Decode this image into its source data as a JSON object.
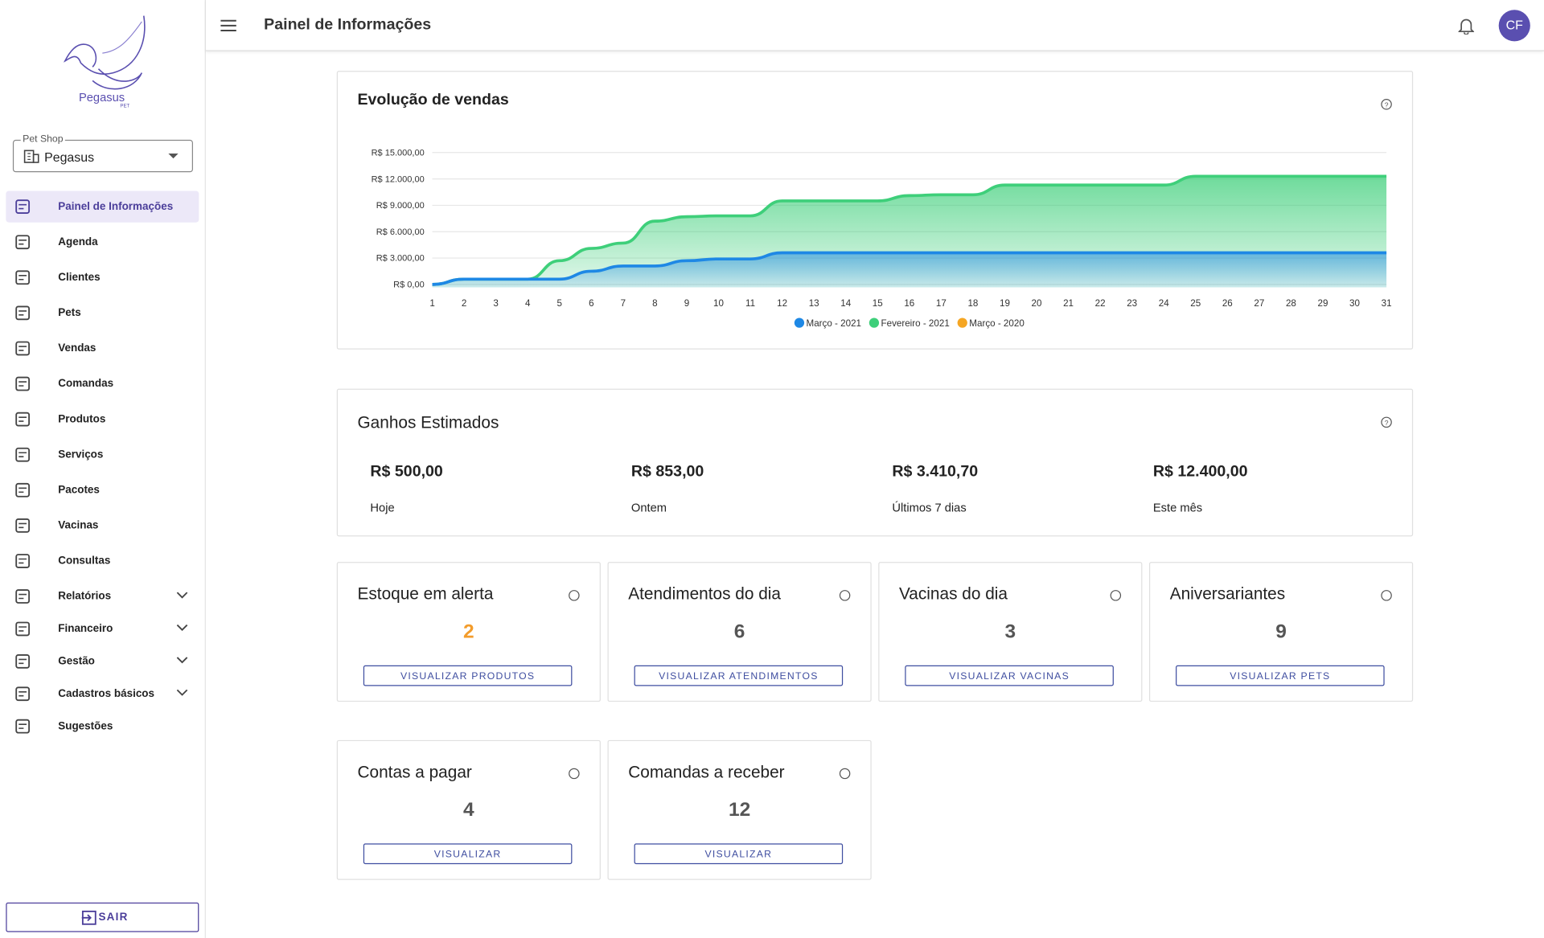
{
  "sidebar": {
    "logo": "Pegasus",
    "logo_sub": "PET",
    "shop_label": "Pet Shop",
    "shop_value": "Pegasus",
    "menu": [
      {
        "label": "Painel de Informações",
        "active": true
      },
      {
        "label": "Agenda"
      },
      {
        "label": "Clientes"
      },
      {
        "label": "Pets"
      },
      {
        "label": "Vendas"
      },
      {
        "label": "Comandas"
      },
      {
        "label": "Produtos"
      },
      {
        "label": "Serviços"
      },
      {
        "label": "Pacotes"
      },
      {
        "label": "Vacinas"
      },
      {
        "label": "Consultas"
      },
      {
        "label": "Relatórios",
        "expandable": true
      },
      {
        "label": "Financeiro",
        "expandable": true
      },
      {
        "label": "Gestão",
        "expandable": true
      },
      {
        "label": "Cadastros básicos",
        "expandable": true
      },
      {
        "label": "Sugestões"
      }
    ],
    "logout": "SAIR"
  },
  "header": {
    "title": "Painel de Informações",
    "avatar": "CF"
  },
  "chart_data": {
    "type": "area",
    "title": "Evolução de vendas",
    "x": [
      1,
      2,
      3,
      4,
      5,
      6,
      7,
      8,
      9,
      10,
      11,
      12,
      13,
      14,
      15,
      16,
      17,
      18,
      19,
      20,
      21,
      22,
      23,
      24,
      25,
      26,
      27,
      28,
      29,
      30,
      31
    ],
    "xlim": [
      1,
      31
    ],
    "xticks": [
      1,
      2,
      3,
      4,
      5,
      6,
      7,
      8,
      9,
      10,
      11,
      12,
      13,
      14,
      15,
      16,
      17,
      18,
      19,
      20,
      21,
      22,
      23,
      24,
      25,
      26,
      27,
      28,
      29,
      30,
      31
    ],
    "ylim": [
      0,
      15000
    ],
    "yticks": [
      {
        "value": 0,
        "label": "R$ 0,00"
      },
      {
        "value": 3000,
        "label": "R$ 3.000,00"
      },
      {
        "value": 6000,
        "label": "R$ 6.000,00"
      },
      {
        "value": 9000,
        "label": "R$ 9.000,00"
      },
      {
        "value": 12000,
        "label": "R$ 12.000,00"
      },
      {
        "value": 15000,
        "label": "R$ 15.000,00"
      }
    ],
    "grid": true,
    "series": [
      {
        "name": "Março - 2021",
        "color": "#1e88e5",
        "values": [
          0,
          600,
          600,
          600,
          600,
          1500,
          2100,
          2100,
          2700,
          2900,
          2900,
          3600,
          3600,
          3600,
          3600,
          3600,
          3600,
          3600,
          3600,
          3600,
          3600,
          3600,
          3600,
          3600,
          3600,
          3600,
          3600,
          3600,
          3600,
          3600,
          3600
        ]
      },
      {
        "name": "Fevereiro - 2021",
        "color": "#3ecf7a",
        "values": [
          0,
          600,
          600,
          600,
          2700,
          4100,
          4700,
          7200,
          7700,
          7800,
          7800,
          9500,
          9500,
          9500,
          9500,
          10100,
          10200,
          10200,
          11300,
          11300,
          11300,
          11300,
          11300,
          11300,
          12300,
          12300,
          12300,
          12300,
          12300,
          12300,
          12300
        ]
      },
      {
        "name": "Março - 2020",
        "color": "#f5a623",
        "values": [
          null,
          null,
          null,
          null,
          null,
          null,
          null,
          null,
          null,
          null,
          null,
          null,
          null,
          null,
          null,
          null,
          null,
          null,
          null,
          null,
          null,
          null,
          null,
          null,
          null,
          null,
          null,
          null,
          null,
          null,
          null
        ]
      }
    ]
  },
  "earnings": {
    "title": "Ganhos Estimados",
    "items": [
      {
        "value": "R$ 500,00",
        "label": "Hoje"
      },
      {
        "value": "R$ 853,00",
        "label": "Ontem"
      },
      {
        "value": "R$ 3.410,70",
        "label": "Últimos 7 dias"
      },
      {
        "value": "R$ 12.400,00",
        "label": "Este mês"
      }
    ]
  },
  "cards": [
    {
      "title": "Estoque em alerta",
      "value": 2,
      "button": "VISUALIZAR PRODUTOS",
      "highlight": true
    },
    {
      "title": "Atendimentos do dia",
      "value": 6,
      "button": "VISUALIZAR ATENDIMENTOS"
    },
    {
      "title": "Vacinas do dia",
      "value": 3,
      "button": "VISUALIZAR VACINAS"
    },
    {
      "title": "Aniversariantes",
      "value": 9,
      "button": "VISUALIZAR PETS"
    },
    {
      "title": "Contas a pagar",
      "value": 4,
      "button": "VISUALIZAR"
    },
    {
      "title": "Comandas a receber",
      "value": 12,
      "button": "VISUALIZAR"
    }
  ]
}
